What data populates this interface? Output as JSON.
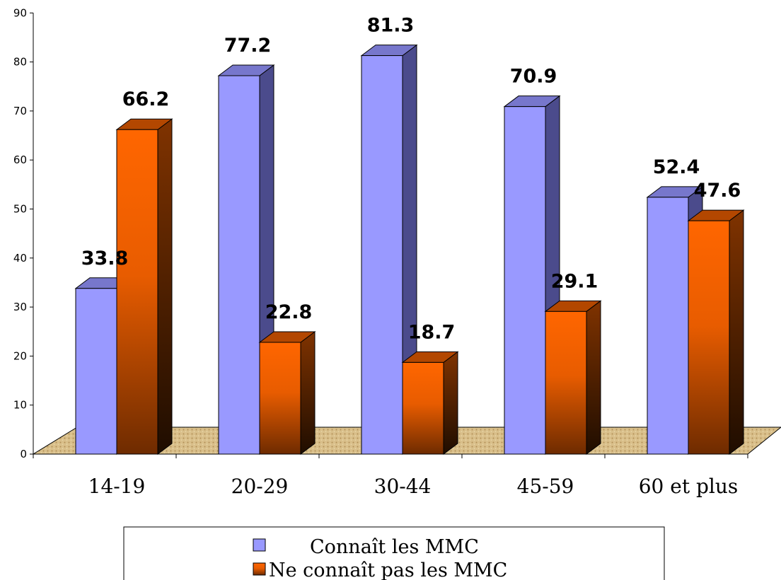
{
  "chart_data": {
    "type": "bar",
    "categories": [
      "14-19",
      "20-29",
      "30-44",
      "45-59",
      "60 et plus"
    ],
    "series": [
      {
        "name": "Connaît les MMC",
        "values": [
          33.8,
          77.2,
          81.3,
          70.9,
          52.4
        ],
        "color": "#9999ff"
      },
      {
        "name": "Ne connaît pas les MMC",
        "values": [
          66.2,
          22.8,
          18.7,
          29.1,
          47.6
        ],
        "color": "#ff6600"
      }
    ],
    "ylim": [
      0,
      90
    ],
    "yticks": [
      0,
      10,
      20,
      30,
      40,
      50,
      60,
      70,
      80,
      90
    ],
    "grid": false,
    "legend_position": "bottom",
    "three_d": true
  }
}
